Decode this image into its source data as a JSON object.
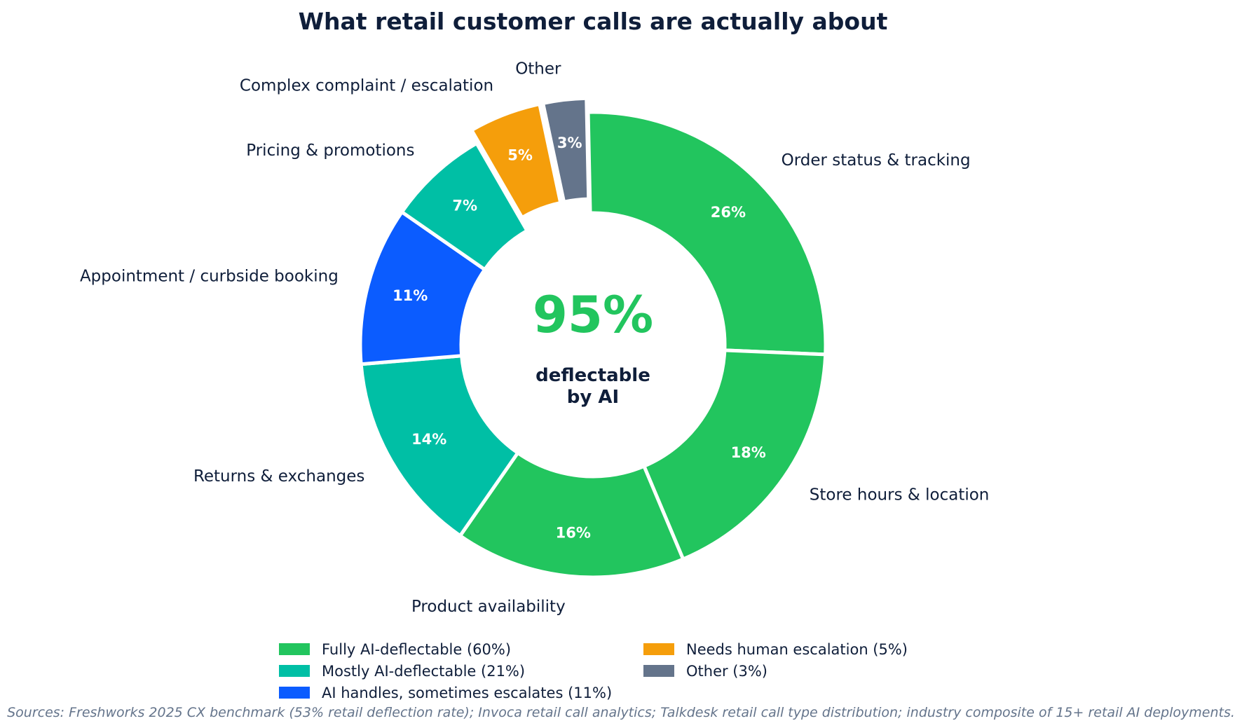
{
  "chart_data": {
    "type": "pie",
    "variant": "donut",
    "title": "What retail customer calls are actually about",
    "slices": [
      {
        "label": "Order status & tracking",
        "value": 26,
        "pct_label": "26%",
        "category": "fully",
        "color": "#22c55e"
      },
      {
        "label": "Store hours & location",
        "value": 18,
        "pct_label": "18%",
        "category": "fully",
        "color": "#22c55e"
      },
      {
        "label": "Product availability",
        "value": 16,
        "pct_label": "16%",
        "category": "fully",
        "color": "#22c55e"
      },
      {
        "label": "Returns & exchanges",
        "value": 14,
        "pct_label": "14%",
        "category": "mostly",
        "color": "#00bfa5"
      },
      {
        "label": "Appointment / curbside booking",
        "value": 11,
        "pct_label": "11%",
        "category": "sometimes",
        "color": "#0b5cff"
      },
      {
        "label": "Pricing & promotions",
        "value": 7,
        "pct_label": "7%",
        "category": "mostly",
        "color": "#00bfa5"
      },
      {
        "label": "Complex complaint / escalation",
        "value": 5,
        "pct_label": "5%",
        "category": "escalation",
        "color": "#f59e0b",
        "exploded": true
      },
      {
        "label": "Other",
        "value": 3,
        "pct_label": "3%",
        "category": "other",
        "color": "#64748b",
        "exploded": true
      }
    ],
    "center": {
      "value": "95%",
      "value_color": "#22c55e",
      "line1": "deflectable",
      "line2": "by AI"
    },
    "legend": {
      "placement": "bottom",
      "columns": [
        [
          {
            "label": "Fully AI-deflectable (60%)",
            "color": "#22c55e"
          },
          {
            "label": "Mostly AI-deflectable (21%)",
            "color": "#00bfa5"
          },
          {
            "label": "AI handles, sometimes escalates (11%)",
            "color": "#0b5cff"
          }
        ],
        [
          {
            "label": "Needs human escalation (5%)",
            "color": "#f59e0b"
          },
          {
            "label": "Other (3%)",
            "color": "#64748b"
          }
        ]
      ]
    },
    "source": "Sources: Freshworks 2025 CX benchmark (53% retail deflection rate); Invoca retail call analytics; Talkdesk retail call type distribution; industry composite of 15+ retail AI deployments."
  }
}
